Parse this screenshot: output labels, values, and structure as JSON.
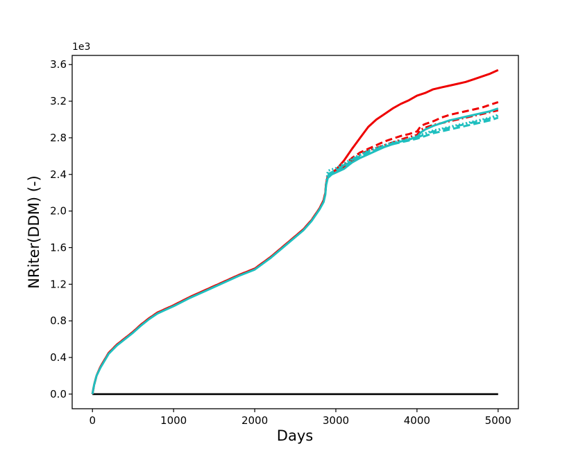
{
  "chart_data": {
    "type": "line",
    "xlabel": "Days",
    "ylabel": "NRiter(DDM)  (-)",
    "y_offset_label": "1e3",
    "xlim": [
      -250,
      5250
    ],
    "ylim": [
      -0.16,
      3.7
    ],
    "x_ticks": [
      0,
      1000,
      2000,
      3000,
      4000,
      5000
    ],
    "x_tick_labels": [
      "0",
      "1000",
      "2000",
      "3000",
      "4000",
      "5000"
    ],
    "y_ticks": [
      0.0,
      0.4,
      0.8,
      1.2,
      1.6,
      2.0,
      2.4,
      2.8,
      3.2,
      3.6
    ],
    "y_tick_labels": [
      "0.0",
      "0.4",
      "0.8",
      "1.2",
      "1.6",
      "2.0",
      "2.4",
      "2.8",
      "3.2",
      "3.6"
    ],
    "grid": false,
    "legend": "none",
    "colors": {
      "red": "#ee0000",
      "cyan": "#1fbfbf",
      "black": "#000000"
    },
    "series": [
      {
        "color": "#000000",
        "style": "solid",
        "x": [
          0,
          5000
        ],
        "y": [
          0.0,
          0.0
        ]
      },
      {
        "color": "#ee0000",
        "style": "solid",
        "x": [
          0,
          20,
          50,
          100,
          200,
          300,
          400,
          500,
          600,
          700,
          800,
          900,
          1000,
          1200,
          1400,
          1600,
          1800,
          2000,
          2200,
          2400,
          2600,
          2700,
          2800,
          2850,
          2870,
          2880,
          2900,
          2950,
          3000,
          3100,
          3200,
          3300,
          3400,
          3500,
          3600,
          3700,
          3800,
          3900,
          4000,
          4100,
          4200,
          4300,
          4400,
          4500,
          4600,
          4700,
          4800,
          4900,
          5000
        ],
        "y": [
          0.0,
          0.1,
          0.2,
          0.3,
          0.45,
          0.54,
          0.61,
          0.68,
          0.76,
          0.83,
          0.89,
          0.93,
          0.97,
          1.06,
          1.14,
          1.22,
          1.3,
          1.37,
          1.5,
          1.65,
          1.8,
          1.9,
          2.03,
          2.12,
          2.2,
          2.3,
          2.38,
          2.42,
          2.45,
          2.55,
          2.68,
          2.8,
          2.92,
          3.0,
          3.06,
          3.12,
          3.17,
          3.21,
          3.26,
          3.29,
          3.33,
          3.35,
          3.37,
          3.39,
          3.41,
          3.44,
          3.47,
          3.5,
          3.54
        ]
      },
      {
        "color": "#ee0000",
        "style": "dashed",
        "x": [
          0,
          20,
          50,
          100,
          200,
          300,
          400,
          500,
          600,
          700,
          800,
          900,
          1000,
          1200,
          1400,
          1600,
          1800,
          2000,
          2200,
          2400,
          2600,
          2700,
          2800,
          2850,
          2870,
          2880,
          2900,
          2950,
          3000,
          3100,
          3200,
          3300,
          3400,
          3500,
          3600,
          3700,
          3800,
          3900,
          4000,
          4050,
          4100,
          4200,
          4300,
          4400,
          4500,
          4600,
          4700,
          4800,
          4900,
          5000
        ],
        "y": [
          0.0,
          0.1,
          0.2,
          0.3,
          0.45,
          0.54,
          0.61,
          0.68,
          0.76,
          0.83,
          0.89,
          0.93,
          0.97,
          1.06,
          1.14,
          1.22,
          1.3,
          1.37,
          1.5,
          1.65,
          1.8,
          1.9,
          2.03,
          2.12,
          2.2,
          2.3,
          2.38,
          2.42,
          2.45,
          2.5,
          2.58,
          2.64,
          2.68,
          2.72,
          2.76,
          2.79,
          2.82,
          2.84,
          2.87,
          2.93,
          2.95,
          2.98,
          3.02,
          3.05,
          3.07,
          3.09,
          3.11,
          3.13,
          3.16,
          3.19
        ]
      },
      {
        "color": "#ee0000",
        "style": "dashdot",
        "x": [
          2900,
          3000,
          3100,
          3200,
          3300,
          3400,
          3500,
          3600,
          3700,
          3800,
          3900,
          4000,
          4050,
          4100,
          4200,
          4300,
          4400,
          4500,
          4600,
          4700,
          4800,
          4900,
          5000
        ],
        "y": [
          2.38,
          2.43,
          2.48,
          2.55,
          2.62,
          2.66,
          2.69,
          2.72,
          2.75,
          2.78,
          2.81,
          2.83,
          2.89,
          2.91,
          2.94,
          2.96,
          2.98,
          3.0,
          3.02,
          3.04,
          3.06,
          3.08,
          3.1
        ]
      },
      {
        "color": "#1fbfbf",
        "style": "solid",
        "x": [
          0,
          20,
          50,
          100,
          200,
          300,
          400,
          500,
          600,
          700,
          800,
          900,
          1000,
          1200,
          1400,
          1600,
          1800,
          2000,
          2200,
          2400,
          2600,
          2700,
          2800,
          2850,
          2870,
          2880,
          2900,
          2950,
          3000,
          3100,
          3200,
          3300,
          3400,
          3500,
          3600,
          3700,
          3800,
          3900,
          4000,
          4050,
          4100,
          4200,
          4300,
          4400,
          4500,
          4600,
          4700,
          4800,
          4900,
          5000
        ],
        "y": [
          0.0,
          0.1,
          0.2,
          0.29,
          0.44,
          0.53,
          0.6,
          0.67,
          0.75,
          0.82,
          0.88,
          0.92,
          0.96,
          1.05,
          1.13,
          1.21,
          1.29,
          1.36,
          1.49,
          1.64,
          1.79,
          1.89,
          2.02,
          2.1,
          2.18,
          2.28,
          2.36,
          2.4,
          2.42,
          2.46,
          2.53,
          2.58,
          2.62,
          2.66,
          2.7,
          2.73,
          2.76,
          2.78,
          2.81,
          2.86,
          2.89,
          2.93,
          2.96,
          2.99,
          3.01,
          3.03,
          3.05,
          3.07,
          3.09,
          3.12
        ]
      },
      {
        "color": "#1fbfbf",
        "style": "dashed",
        "x": [
          2900,
          3000,
          3100,
          3200,
          3300,
          3400,
          3500,
          3600,
          3700,
          3800,
          3900,
          4000,
          4100,
          4200,
          4300,
          4400,
          4500,
          4600,
          4700,
          4800,
          4900,
          5000
        ],
        "y": [
          2.38,
          2.44,
          2.49,
          2.55,
          2.6,
          2.64,
          2.67,
          2.7,
          2.73,
          2.75,
          2.77,
          2.79,
          2.82,
          2.85,
          2.87,
          2.89,
          2.91,
          2.93,
          2.95,
          2.97,
          2.99,
          3.02
        ]
      },
      {
        "color": "#1fbfbf",
        "style": "dashdot",
        "x": [
          2900,
          3000,
          3100,
          3200,
          3300,
          3400,
          3500,
          3600,
          3700,
          3800,
          3900,
          4000,
          4100,
          4200,
          4300,
          4400,
          4500,
          4600,
          4700,
          4800,
          4900,
          5000
        ],
        "y": [
          2.4,
          2.45,
          2.5,
          2.56,
          2.61,
          2.65,
          2.68,
          2.71,
          2.74,
          2.76,
          2.78,
          2.8,
          2.84,
          2.87,
          2.89,
          2.91,
          2.93,
          2.95,
          2.97,
          2.99,
          3.01,
          3.04
        ]
      },
      {
        "color": "#1fbfbf",
        "style": "dotted",
        "x": [
          2880,
          2900,
          3000,
          3100,
          3200,
          3300,
          3400,
          3500,
          3600,
          3700,
          3800,
          3900,
          4000,
          4100,
          4200,
          4300,
          4400,
          4500,
          4600,
          4700,
          4800,
          4900,
          5000
        ],
        "y": [
          2.3,
          2.44,
          2.47,
          2.52,
          2.57,
          2.62,
          2.66,
          2.69,
          2.72,
          2.75,
          2.77,
          2.79,
          2.82,
          2.85,
          2.88,
          2.9,
          2.92,
          2.94,
          2.96,
          2.98,
          3.0,
          3.02,
          3.05
        ]
      }
    ]
  }
}
